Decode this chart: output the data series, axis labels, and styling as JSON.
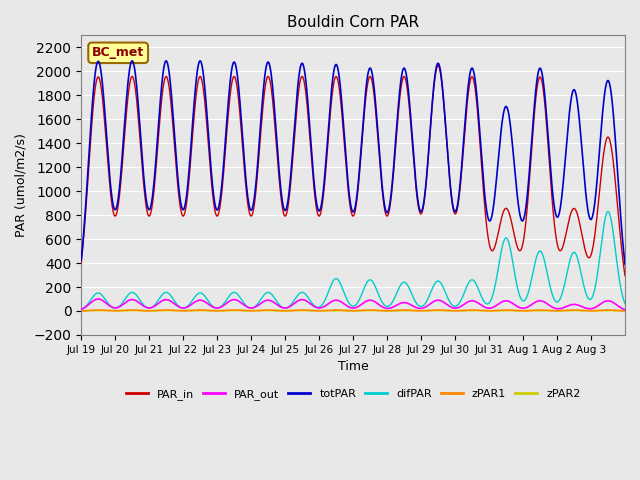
{
  "title": "Bouldin Corn PAR",
  "xlabel": "Time",
  "ylabel": "PAR (umol/m2/s)",
  "ylim": [
    -200,
    2300
  ],
  "yticks": [
    -200,
    0,
    200,
    400,
    600,
    800,
    1000,
    1200,
    1400,
    1600,
    1800,
    2000,
    2200
  ],
  "num_days": 16,
  "colors": {
    "PAR_in": "#cc0000",
    "PAR_out": "#ff00ff",
    "totPAR": "#0000cc",
    "difPAR": "#00cccc",
    "zPAR1": "#ff8800",
    "zPAR2": "#cccc00"
  },
  "legend_labels": [
    "PAR_in",
    "PAR_out",
    "totPAR",
    "difPAR",
    "zPAR1",
    "zPAR2"
  ],
  "annotation_text": "BC_met",
  "annotation_facecolor": "#ffff99",
  "annotation_edgecolor": "#996600",
  "plot_bg_color": "#e8e8e8",
  "tick_labels": [
    "Jul 19",
    "Jul 20",
    "Jul 21",
    "Jul 22",
    "Jul 23",
    "Jul 24",
    "Jul 25",
    "Jul 26",
    "Jul 27",
    "Jul 28",
    "Jul 29",
    "Jul 30",
    "Jul 31",
    "Aug 1",
    "Aug 2",
    "Aug 3"
  ],
  "tot_peaks": [
    2080,
    2080,
    2080,
    2080,
    2070,
    2070,
    2060,
    2050,
    2020,
    2020,
    2060,
    2020,
    1700,
    2020,
    1840,
    1920
  ],
  "parin_peaks": [
    1950,
    1950,
    1950,
    1950,
    1950,
    1950,
    1950,
    1950,
    1950,
    1950,
    2040,
    1950,
    850,
    1950,
    850,
    1450
  ],
  "parout_peaks": [
    100,
    95,
    95,
    90,
    95,
    90,
    95,
    90,
    90,
    70,
    90,
    85,
    85,
    85,
    55,
    85
  ],
  "dif_peaks": [
    150,
    155,
    155,
    150,
    155,
    155,
    155,
    270,
    260,
    240,
    250,
    260,
    610,
    500,
    490,
    830
  ],
  "zpar1_peaks": [
    8,
    8,
    8,
    8,
    8,
    8,
    8,
    8,
    8,
    8,
    8,
    8,
    8,
    8,
    8,
    8
  ],
  "zpar2_peaks": [
    3,
    3,
    3,
    3,
    3,
    3,
    3,
    3,
    3,
    3,
    3,
    3,
    3,
    3,
    3,
    3
  ]
}
